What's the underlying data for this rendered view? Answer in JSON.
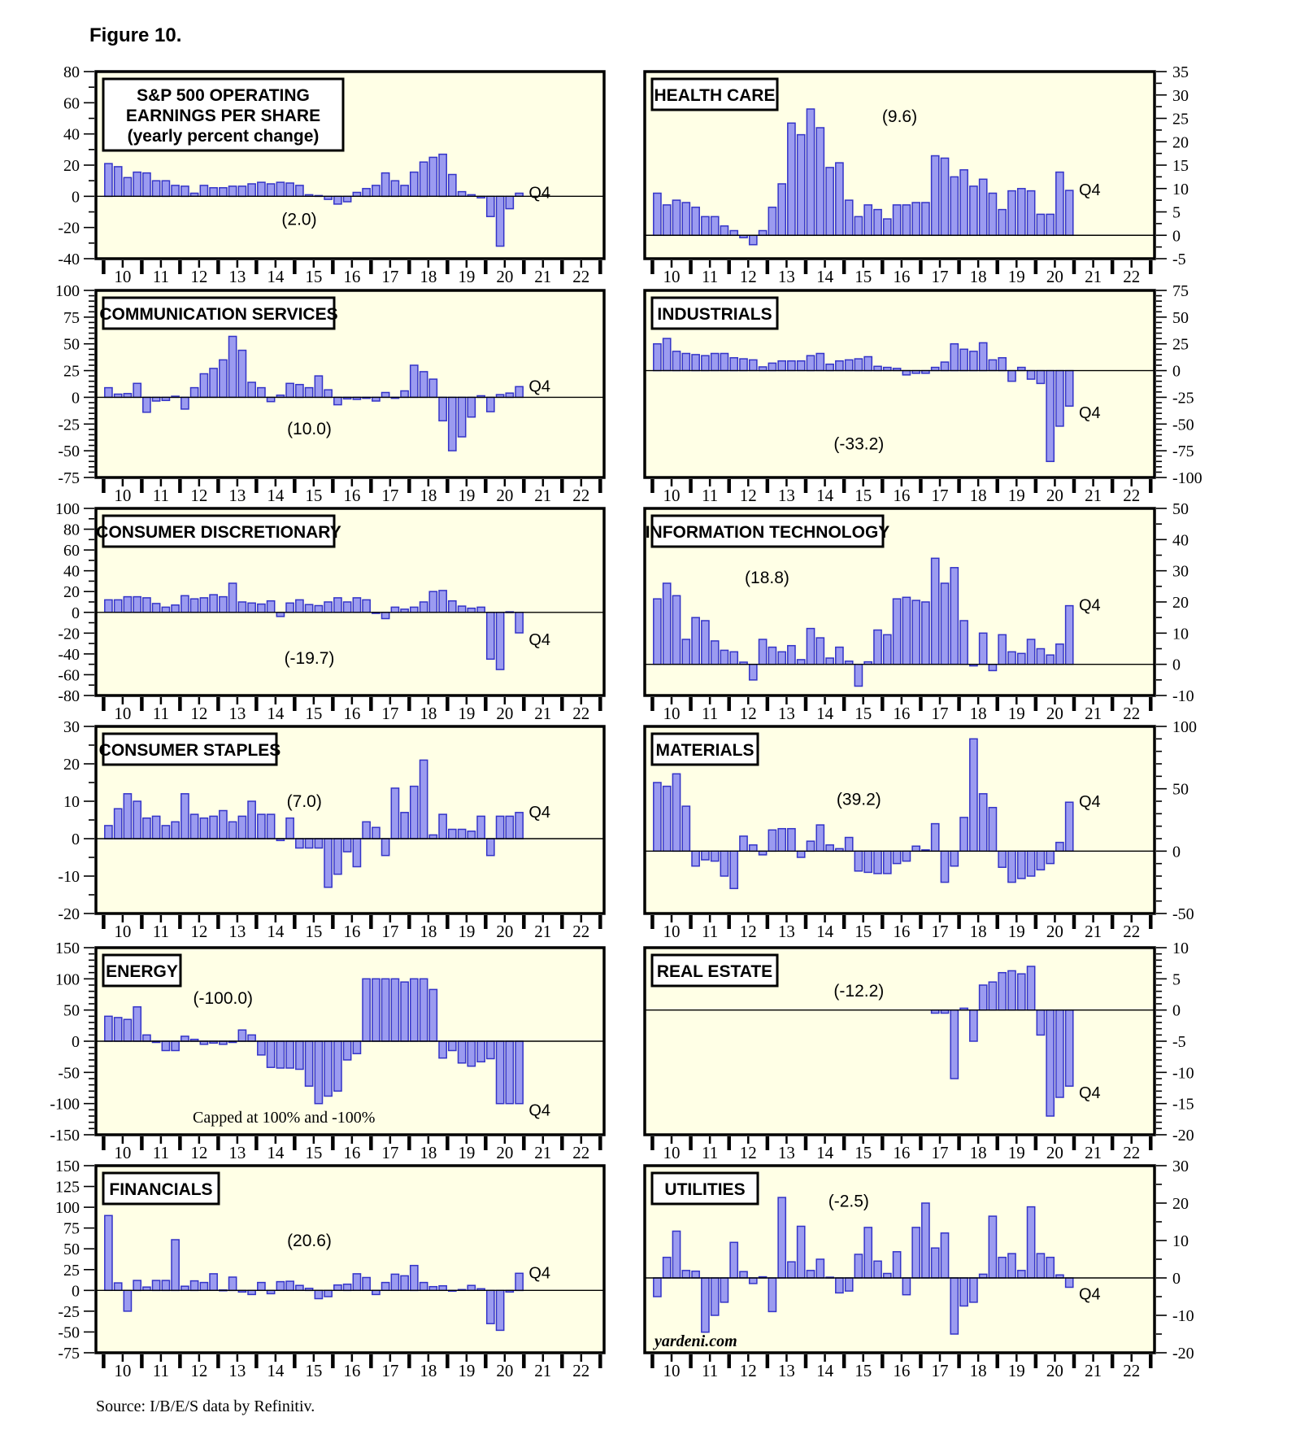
{
  "figure": {
    "title": "Figure 10.",
    "source": "Source: I/B/E/S data by Refinitiv."
  },
  "colors": {
    "bar_fill": "#9B9BF0",
    "bar_stroke": "#3434C8",
    "panel_bg": "#FFFFE6",
    "frame": "#000000"
  },
  "q4_label": "Q4",
  "x_axis": {
    "labels": [
      "10",
      "11",
      "12",
      "13",
      "14",
      "15",
      "16",
      "17",
      "18",
      "19",
      "20",
      "21",
      "22"
    ],
    "first_year": 2010,
    "last_boundary": 2023
  },
  "series_info": {
    "frequency": "quarterly",
    "x_start": "2010Q1",
    "x_end": "2020Q4",
    "unit": "yearly percent change"
  },
  "chart_data": [
    {
      "type": "bar",
      "id": "sp500",
      "axis_side": "left",
      "title_lines": [
        "S&P 500 OPERATING",
        "EARNINGS PER SHARE",
        "(yearly percent change)"
      ],
      "annotation": "(2.0)",
      "ann_fx": 0.4,
      "ann_fy": 0.82,
      "y_axis": {
        "min": -40,
        "max": 80,
        "major": 20,
        "minor": 10
      },
      "values": [
        21,
        19,
        12,
        15.5,
        15,
        10,
        10,
        7,
        6.5,
        2,
        7,
        5.5,
        5.5,
        6.5,
        6.5,
        8,
        9,
        8,
        9,
        8.5,
        7,
        1,
        0.5,
        -2,
        -5,
        -3.5,
        2.5,
        5,
        7,
        15,
        10,
        7,
        15.5,
        22,
        25,
        27,
        14,
        3,
        1,
        -1,
        -13,
        -32,
        -8,
        2
      ]
    },
    {
      "type": "bar",
      "id": "health-care",
      "axis_side": "right",
      "title_lines": [
        "HEALTH CARE"
      ],
      "annotation": "(9.6)",
      "ann_fx": 0.5,
      "ann_fy": 0.27,
      "y_axis": {
        "min": -5,
        "max": 35,
        "major": 5,
        "minor": 2.5
      },
      "values": [
        9,
        6.5,
        7.5,
        7,
        6,
        4,
        4,
        2,
        1,
        -0.5,
        -2,
        1,
        6,
        11,
        24,
        21.5,
        27,
        23,
        14.5,
        15.5,
        7.5,
        4,
        6.5,
        5.5,
        3.5,
        6.5,
        6.5,
        7,
        7,
        17,
        16.5,
        12.5,
        14,
        10.5,
        12,
        9,
        5.5,
        9.5,
        10,
        9.5,
        4.5,
        4.5,
        13.5,
        9.6
      ]
    },
    {
      "type": "bar",
      "id": "communication-services",
      "axis_side": "left",
      "title_lines": [
        "COMMUNICATION SERVICES"
      ],
      "annotation": "(10.0)",
      "ann_fx": 0.42,
      "ann_fy": 0.77,
      "y_axis": {
        "min": -75,
        "max": 100,
        "major": 25,
        "minor": 5
      },
      "values": [
        9,
        3,
        3.5,
        13,
        -14,
        -3.5,
        -3,
        1,
        -11,
        9,
        22,
        27,
        35,
        57,
        44,
        14,
        9,
        -4,
        2,
        13,
        12,
        9,
        20,
        7,
        -7,
        -1.5,
        -2,
        -1,
        -3.5,
        4.5,
        -1,
        6,
        30,
        24,
        17,
        -22,
        -50,
        -37,
        -18.5,
        1.5,
        -13.5,
        2.5,
        4,
        10
      ]
    },
    {
      "type": "bar",
      "id": "industrials",
      "axis_side": "right",
      "title_lines": [
        "INDUSTRIALS"
      ],
      "annotation": "(-33.2)",
      "ann_fx": 0.42,
      "ann_fy": 0.85,
      "y_axis": {
        "min": -100,
        "max": 75,
        "major": 25,
        "minor": 5
      },
      "values": [
        25,
        30,
        18,
        16,
        15,
        14,
        16,
        16,
        12,
        11,
        10,
        3.5,
        7,
        9,
        9,
        9,
        14,
        16,
        6,
        9,
        10,
        11,
        13,
        4,
        3,
        2,
        -4,
        -2.5,
        -2.5,
        3,
        8,
        25,
        20,
        18,
        26,
        10,
        12,
        -10,
        3,
        -8,
        -12,
        -85,
        -52,
        -33.2
      ]
    },
    {
      "type": "bar",
      "id": "consumer-discretionary",
      "axis_side": "left",
      "title_lines": [
        "CONSUMER DISCRETIONARY"
      ],
      "annotation": "(-19.7)",
      "ann_fx": 0.42,
      "ann_fy": 0.83,
      "y_axis": {
        "min": -80,
        "max": 100,
        "major": 20,
        "minor": 10
      },
      "values": [
        12,
        12,
        15,
        15,
        14,
        8.5,
        5,
        7,
        16,
        13,
        14,
        17,
        15,
        28,
        10,
        9,
        8,
        11,
        -4,
        9,
        12,
        7.5,
        6.5,
        10,
        14,
        10,
        14,
        12,
        -1,
        -6,
        5,
        3,
        5,
        10,
        20,
        21,
        11,
        6,
        4,
        5,
        -45,
        -55,
        0.5,
        -19.7
      ]
    },
    {
      "type": "bar",
      "id": "information-technology",
      "axis_side": "right",
      "title_lines": [
        "INFORMATION TECHNOLOGY"
      ],
      "annotation": "(18.8)",
      "ann_fx": 0.24,
      "ann_fy": 0.4,
      "y_axis": {
        "min": -10,
        "max": 50,
        "major": 10,
        "minor": 5
      },
      "values": [
        21,
        26,
        22,
        8,
        15,
        14,
        7.5,
        4.5,
        4,
        0.7,
        -5,
        8,
        5.5,
        4,
        6,
        1.5,
        11.5,
        8.5,
        2,
        5.5,
        1,
        -7,
        0.8,
        11,
        9.5,
        21,
        21.5,
        20.5,
        20,
        34,
        26,
        31,
        14,
        -0.5,
        10,
        -2,
        9.5,
        4,
        3.5,
        8,
        5,
        3,
        6.5,
        18.8
      ]
    },
    {
      "type": "bar",
      "id": "consumer-staples",
      "axis_side": "left",
      "title_lines": [
        "CONSUMER STAPLES"
      ],
      "annotation": "(7.0)",
      "ann_fx": 0.41,
      "ann_fy": 0.43,
      "y_axis": {
        "min": -20,
        "max": 30,
        "major": 10,
        "minor": 5
      },
      "values": [
        3.5,
        8,
        12,
        10,
        5.5,
        6,
        3.5,
        4.5,
        12,
        6.5,
        5.5,
        6,
        7.5,
        4.5,
        6,
        10,
        6.5,
        6.5,
        -0.5,
        5.5,
        -2.5,
        -2.5,
        -2.5,
        -13,
        -9.5,
        -3.5,
        -7.5,
        4.5,
        3,
        -4.5,
        13.5,
        7,
        14,
        21,
        1,
        6.5,
        2.5,
        2.5,
        2,
        6,
        -4.5,
        6,
        6,
        7
      ]
    },
    {
      "type": "bar",
      "id": "materials",
      "axis_side": "right",
      "title_lines": [
        "MATERIALS"
      ],
      "annotation": "(39.2)",
      "ann_fx": 0.42,
      "ann_fy": 0.42,
      "y_axis": {
        "min": -50,
        "max": 100,
        "major": 50,
        "minor": 10
      },
      "values": [
        55,
        52,
        62,
        36,
        -12,
        -7,
        -8,
        -20,
        -30,
        12,
        5,
        -3,
        17,
        18,
        18,
        -5,
        8,
        21,
        5,
        2,
        11,
        -16,
        -17,
        -18,
        -18,
        -10,
        -8,
        4,
        1,
        22,
        -25,
        -12,
        27,
        90,
        46,
        35,
        -13,
        -25,
        -22,
        -20,
        -15,
        -10,
        7,
        39.2
      ]
    },
    {
      "type": "bar",
      "id": "energy",
      "axis_side": "left",
      "title_lines": [
        "ENERGY"
      ],
      "annotation": "(-100.0)",
      "ann_fx": 0.25,
      "ann_fy": 0.3,
      "note": "Capped at 100% and -100%",
      "note_fx": 0.37,
      "note_fy": 0.935,
      "y_axis": {
        "min": -150,
        "max": 150,
        "major": 50,
        "minor": 10
      },
      "values": [
        40,
        38,
        35,
        55,
        10,
        -2,
        -15,
        -15,
        8,
        3,
        -5,
        -3,
        -5,
        -2,
        18,
        10,
        -22,
        -42,
        -43,
        -43,
        -45,
        -72,
        -100,
        -88,
        -80,
        -30,
        -20,
        100,
        100,
        100,
        100,
        95,
        100,
        100,
        83,
        -27,
        -15,
        -35,
        -40,
        -33,
        -28,
        -100,
        -100,
        -100
      ]
    },
    {
      "type": "bar",
      "id": "real-estate",
      "axis_side": "right",
      "title_lines": [
        "REAL ESTATE"
      ],
      "annotation": "(-12.2)",
      "ann_fx": 0.42,
      "ann_fy": 0.26,
      "y_axis": {
        "min": -20,
        "max": 10,
        "major": 5,
        "minor": 1
      },
      "values": [
        null,
        null,
        null,
        null,
        null,
        null,
        null,
        null,
        null,
        null,
        null,
        null,
        null,
        null,
        null,
        null,
        null,
        null,
        null,
        null,
        null,
        null,
        null,
        null,
        null,
        null,
        null,
        null,
        null,
        -0.5,
        -0.5,
        -11,
        0.3,
        -5,
        4,
        4.5,
        6,
        6.3,
        5.8,
        7,
        -4,
        -17,
        -14,
        -12.2
      ]
    },
    {
      "type": "bar",
      "id": "financials",
      "axis_side": "left",
      "title_lines": [
        "FINANCIALS"
      ],
      "annotation": "(20.6)",
      "ann_fx": 0.42,
      "ann_fy": 0.43,
      "y_axis": {
        "min": -75,
        "max": 150,
        "major": 25,
        "minor": null
      },
      "values": [
        90,
        9,
        -25,
        12,
        4,
        12,
        12,
        61,
        5,
        11.5,
        9.5,
        20,
        0.5,
        16,
        -2,
        -5,
        9.5,
        -4,
        10.5,
        11,
        6,
        2.5,
        -10,
        -7.5,
        6.5,
        7.5,
        20,
        15.5,
        -5,
        9.5,
        19.5,
        17.5,
        30,
        9.5,
        4.5,
        5.5,
        -1,
        1,
        6,
        2,
        -40,
        -48,
        -2,
        20.6
      ]
    },
    {
      "type": "bar",
      "id": "utilities",
      "axis_side": "right",
      "title_lines": [
        "UTILITIES"
      ],
      "annotation": "(-2.5)",
      "ann_fx": 0.4,
      "ann_fy": 0.22,
      "brand": "yardeni.com",
      "brand_fy": 0.965,
      "y_axis": {
        "min": -20,
        "max": 30,
        "major": 10,
        "minor": 5
      },
      "values": [
        -5,
        5.5,
        12.5,
        2,
        1.8,
        -14.5,
        -10,
        -6.5,
        9.5,
        1.7,
        -1.5,
        0.3,
        -9,
        21.5,
        4.3,
        13.8,
        2,
        5,
        0.2,
        -4,
        -3.5,
        6.3,
        13.5,
        4.5,
        1.2,
        7,
        -4.5,
        13.5,
        20,
        8,
        12,
        -15,
        -7.5,
        -6.5,
        1,
        16.5,
        5.5,
        6.5,
        2,
        19,
        6.5,
        5.5,
        0.8,
        -2.5
      ]
    }
  ]
}
